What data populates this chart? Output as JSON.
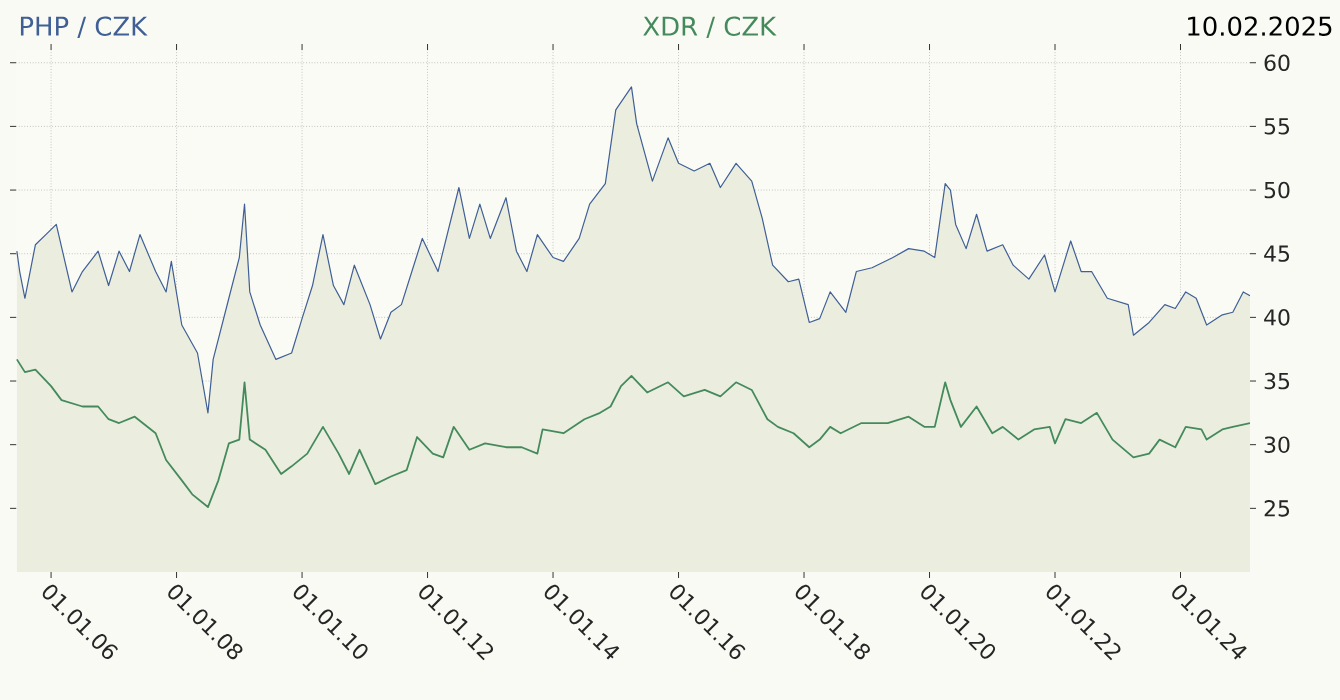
{
  "chart_data": {
    "type": "area",
    "legend": "top",
    "grid": true,
    "annotations": [
      "10.02.2025"
    ],
    "xlim": [
      "2005-06-10",
      "2025-02-10"
    ],
    "ylim": [
      20,
      61
    ],
    "xticks": [
      {
        "value": "2006-01-01",
        "label": "01.01.06"
      },
      {
        "value": "2008-01-01",
        "label": "01.01.08"
      },
      {
        "value": "2010-01-01",
        "label": "01.01.10"
      },
      {
        "value": "2012-01-01",
        "label": "01.01.12"
      },
      {
        "value": "2014-01-01",
        "label": "01.01.14"
      },
      {
        "value": "2016-01-01",
        "label": "01.01.16"
      },
      {
        "value": "2018-01-01",
        "label": "01.01.18"
      },
      {
        "value": "2020-01-01",
        "label": "01.01.20"
      },
      {
        "value": "2022-01-01",
        "label": "01.01.22"
      },
      {
        "value": "2024-01-01",
        "label": "01.01.24"
      }
    ],
    "yticks": [
      25,
      30,
      35,
      40,
      45,
      50,
      55,
      60
    ],
    "series": [
      {
        "name": "PHP / CZK",
        "color": "#3f5f95",
        "x": [
          "2005-06-15",
          "2005-07",
          "2005-08",
          "2005-10",
          "2005-12",
          "2006-02",
          "2006-05",
          "2006-07",
          "2006-10",
          "2006-12",
          "2007-02",
          "2007-04",
          "2007-06",
          "2007-09",
          "2007-11",
          "2007-12",
          "2008-02",
          "2008-05",
          "2008-07",
          "2008-08",
          "2008-11",
          "2009-01",
          "2009-02",
          "2009-03",
          "2009-05",
          "2009-08",
          "2009-11",
          "2010-01",
          "2010-03",
          "2010-05",
          "2010-07",
          "2010-09",
          "2010-11",
          "2011-02",
          "2011-04",
          "2011-06",
          "2011-08",
          "2011-10",
          "2011-12",
          "2012-03",
          "2012-07",
          "2012-09",
          "2012-11",
          "2013-01",
          "2013-04",
          "2013-06",
          "2013-08",
          "2013-10",
          "2014-01",
          "2014-03",
          "2014-06",
          "2014-08",
          "2014-11",
          "2015-01",
          "2015-04",
          "2015-05",
          "2015-08",
          "2015-11",
          "2016-01",
          "2016-04",
          "2016-07",
          "2016-09",
          "2016-12",
          "2017-03",
          "2017-05",
          "2017-07",
          "2017-10",
          "2017-12",
          "2018-02",
          "2018-04",
          "2018-06",
          "2018-09",
          "2018-11",
          "2019-02",
          "2019-06",
          "2019-09",
          "2019-12",
          "2020-02",
          "2020-04",
          "2020-05",
          "2020-06",
          "2020-08",
          "2020-10",
          "2020-12",
          "2021-03",
          "2021-05",
          "2021-08",
          "2021-11",
          "2022-01",
          "2022-04",
          "2022-06",
          "2022-08",
          "2022-11",
          "2023-03",
          "2023-04",
          "2023-07",
          "2023-10",
          "2023-12",
          "2024-02",
          "2024-04",
          "2024-06",
          "2024-09",
          "2024-11",
          "2025-01",
          "2025-02-10"
        ],
        "values": [
          45.2,
          43.6,
          41.5,
          45.7,
          46.5,
          47.3,
          42,
          43.6,
          45.2,
          42.5,
          45.2,
          43.6,
          46.5,
          43.6,
          42,
          44.4,
          39.4,
          37.2,
          32.5,
          36.7,
          41.5,
          44.7,
          48.9,
          42,
          39.4,
          36.7,
          37.2,
          39.9,
          42.5,
          46.5,
          42.5,
          41,
          44.1,
          41,
          38.3,
          40.4,
          41,
          43.6,
          46.2,
          43.6,
          50.2,
          46.2,
          48.9,
          46.2,
          49.4,
          45.2,
          43.6,
          46.5,
          44.7,
          44.4,
          46.2,
          48.9,
          50.5,
          56.3,
          58.1,
          55.2,
          50.7,
          54.1,
          52.1,
          51.5,
          52.1,
          50.2,
          52.1,
          50.7,
          47.8,
          44.1,
          42.8,
          43,
          39.6,
          39.9,
          42,
          40.4,
          43.6,
          43.9,
          44.7,
          45.4,
          45.2,
          44.7,
          50.5,
          50,
          47.3,
          45.4,
          48.1,
          45.2,
          45.7,
          44.1,
          43,
          44.9,
          42,
          46,
          43.6,
          43.6,
          41.5,
          41,
          38.6,
          39.6,
          41,
          40.7,
          42,
          41.5,
          39.4,
          40.2,
          40.4,
          42,
          41.7
        ]
      },
      {
        "name": "XDR / CZK",
        "color": "#458a5c",
        "type": "line",
        "x": [
          "2005-06-15",
          "2005-08",
          "2005-10",
          "2006-01",
          "2006-03",
          "2006-07",
          "2006-10",
          "2006-12",
          "2007-02",
          "2007-05",
          "2007-09",
          "2007-11",
          "2008-02",
          "2008-04",
          "2008-07",
          "2008-09",
          "2008-11",
          "2009-01",
          "2009-02",
          "2009-03",
          "2009-06",
          "2009-09",
          "2009-11",
          "2010-02",
          "2010-05",
          "2010-08",
          "2010-10",
          "2010-12",
          "2011-03",
          "2011-06",
          "2011-09",
          "2011-11",
          "2012-02",
          "2012-04",
          "2012-06",
          "2012-09",
          "2012-12",
          "2013-04",
          "2013-07",
          "2013-10",
          "2013-11",
          "2014-03",
          "2014-07",
          "2014-10",
          "2014-12",
          "2015-02",
          "2015-04",
          "2015-07",
          "2015-11",
          "2016-02",
          "2016-06",
          "2016-09",
          "2016-12",
          "2017-03",
          "2017-06",
          "2017-08",
          "2017-11",
          "2018-02",
          "2018-04",
          "2018-06",
          "2018-08",
          "2018-12",
          "2019-05",
          "2019-09",
          "2019-12",
          "2020-02",
          "2020-04",
          "2020-05",
          "2020-07",
          "2020-10",
          "2021-01",
          "2021-03",
          "2021-06",
          "2021-09",
          "2021-12",
          "2022-01",
          "2022-03",
          "2022-06",
          "2022-09",
          "2022-12",
          "2023-04",
          "2023-07",
          "2023-09",
          "2023-12",
          "2024-02",
          "2024-05",
          "2024-06",
          "2024-09",
          "2024-11",
          "2025-02-10"
        ],
        "values": [
          36.7,
          35.7,
          35.9,
          34.6,
          33.5,
          33,
          33,
          32,
          31.7,
          32.2,
          30.9,
          28.8,
          27.2,
          26.1,
          25.1,
          27.2,
          30.1,
          30.4,
          34.9,
          30.4,
          29.6,
          27.7,
          28.3,
          29.3,
          31.4,
          29.3,
          27.7,
          29.6,
          26.9,
          27.5,
          28,
          30.6,
          29.3,
          29,
          31.4,
          29.6,
          30.1,
          29.8,
          29.8,
          29.3,
          31.2,
          30.9,
          32,
          32.5,
          33,
          34.6,
          35.4,
          34.1,
          34.9,
          33.8,
          34.3,
          33.8,
          34.9,
          34.3,
          32,
          31.4,
          30.9,
          29.8,
          30.4,
          31.4,
          30.9,
          31.7,
          31.7,
          32.2,
          31.4,
          31.4,
          34.9,
          33.5,
          31.4,
          33,
          30.9,
          31.4,
          30.4,
          31.2,
          31.4,
          30.1,
          32,
          31.7,
          32.5,
          30.4,
          29,
          29.3,
          30.4,
          29.8,
          31.4,
          31.2,
          30.4,
          31.2,
          31.4,
          31.7
        ]
      }
    ]
  }
}
